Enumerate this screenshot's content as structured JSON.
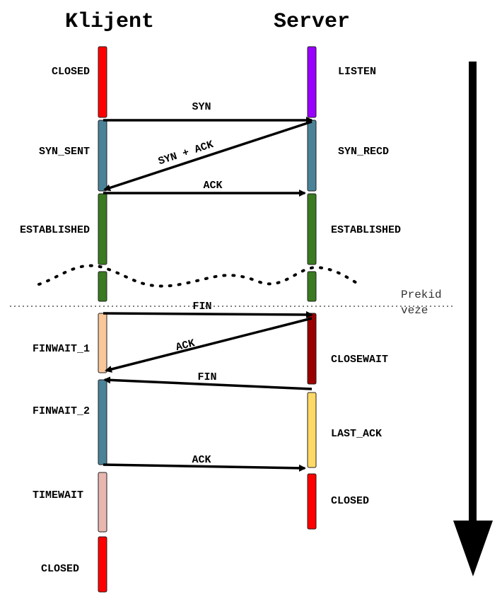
{
  "headers": {
    "client": "Klijent",
    "server": "Server"
  },
  "client_states": [
    {
      "label": "CLOSED",
      "color": "#ff0000"
    },
    {
      "label": "SYN_SENT",
      "color": "#4a8398"
    },
    {
      "label": "ESTABLISHED",
      "color": "#3a7a20"
    },
    {
      "label": "FINWAIT_1",
      "color": "#f9c79a"
    },
    {
      "label": "FINWAIT_2",
      "color": "#4a8398"
    },
    {
      "label": "TIMEWAIT",
      "color": "#e8b7b0"
    },
    {
      "label": "CLOSED",
      "color": "#ff0000"
    }
  ],
  "server_states": [
    {
      "label": "LISTEN",
      "color": "#9900ff"
    },
    {
      "label": "SYN_RECD",
      "color": "#4a8398"
    },
    {
      "label": "ESTABLISHED",
      "color": "#3a7a20"
    },
    {
      "label": "CLOSEWAIT",
      "color": "#990000"
    },
    {
      "label": "LAST_ACK",
      "color": "#ffd966"
    },
    {
      "label": "CLOSED",
      "color": "#ff0000"
    }
  ],
  "messages": [
    {
      "label": "SYN",
      "from": "client",
      "to": "server"
    },
    {
      "label": "SYN + ACK",
      "from": "server",
      "to": "client"
    },
    {
      "label": "ACK",
      "from": "client",
      "to": "server"
    },
    {
      "label": "FIN",
      "from": "client",
      "to": "server"
    },
    {
      "label": "ACK",
      "from": "server",
      "to": "client"
    },
    {
      "label": "FIN",
      "from": "server",
      "to": "client"
    },
    {
      "label": "ACK",
      "from": "client",
      "to": "server"
    }
  ],
  "break_note": {
    "line1": "Prekid",
    "line2": "veze"
  }
}
